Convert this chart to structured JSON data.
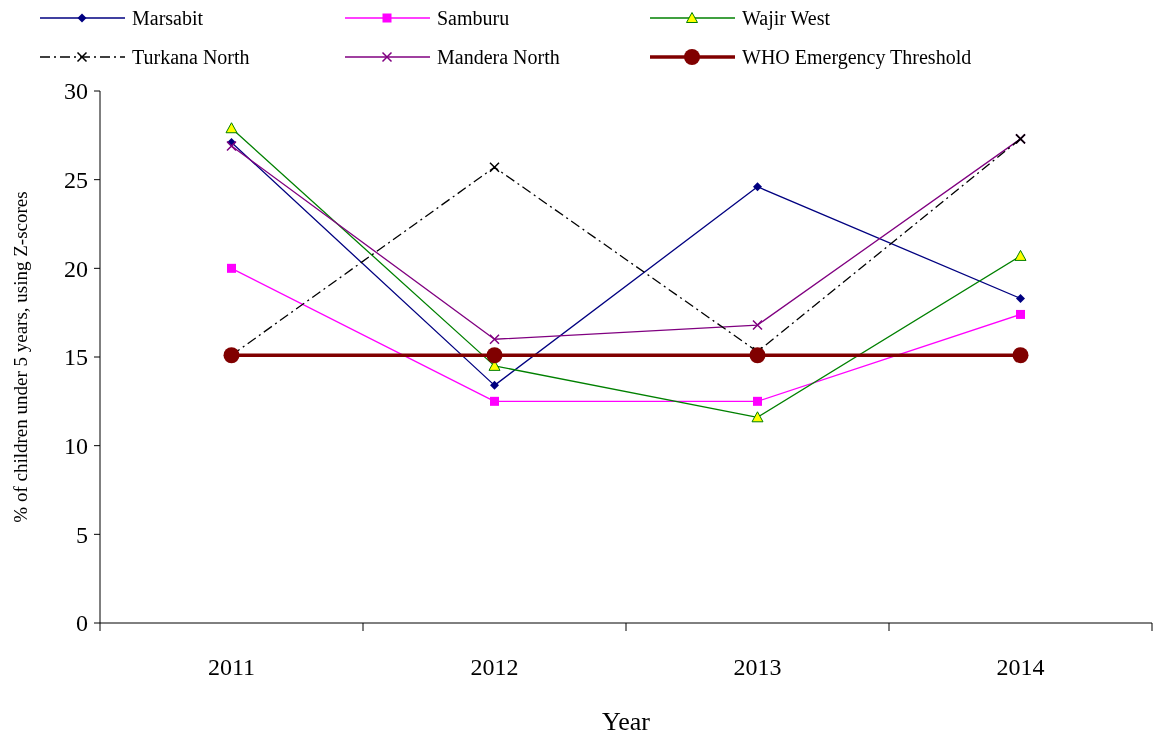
{
  "chart_data": {
    "type": "line",
    "xlabel": "Year",
    "ylabel": "% of children under 5 years, using Z-scores",
    "categories": [
      "2011",
      "2012",
      "2013",
      "2014"
    ],
    "ylim": [
      0,
      30
    ],
    "yticks": [
      0,
      5,
      10,
      15,
      20,
      25,
      30
    ],
    "grid": false,
    "legend": "top",
    "series": [
      {
        "name": "Marsabit",
        "color": "#000080",
        "marker": "diamond",
        "values": [
          27.1,
          13.4,
          24.6,
          18.3
        ]
      },
      {
        "name": "Samburu",
        "color": "#ff00ff",
        "marker": "square",
        "values": [
          20.0,
          12.5,
          12.5,
          17.4
        ]
      },
      {
        "name": "Wajir West",
        "color": "#008000",
        "marker": "triangle",
        "values": [
          27.9,
          14.5,
          11.6,
          20.7
        ]
      },
      {
        "name": "Turkana North",
        "color": "#000000",
        "marker": "cross",
        "line_style": "dashed",
        "values": [
          15.1,
          25.7,
          15.3,
          27.3
        ]
      },
      {
        "name": "Mandera North",
        "color": "#800080",
        "marker": "cross",
        "values": [
          26.9,
          16.0,
          16.8,
          27.3
        ]
      },
      {
        "name": "WHO Emergency Threshold",
        "color": "#800000",
        "marker": "circle",
        "values": [
          15.1,
          15.1,
          15.1,
          15.1
        ]
      }
    ]
  }
}
